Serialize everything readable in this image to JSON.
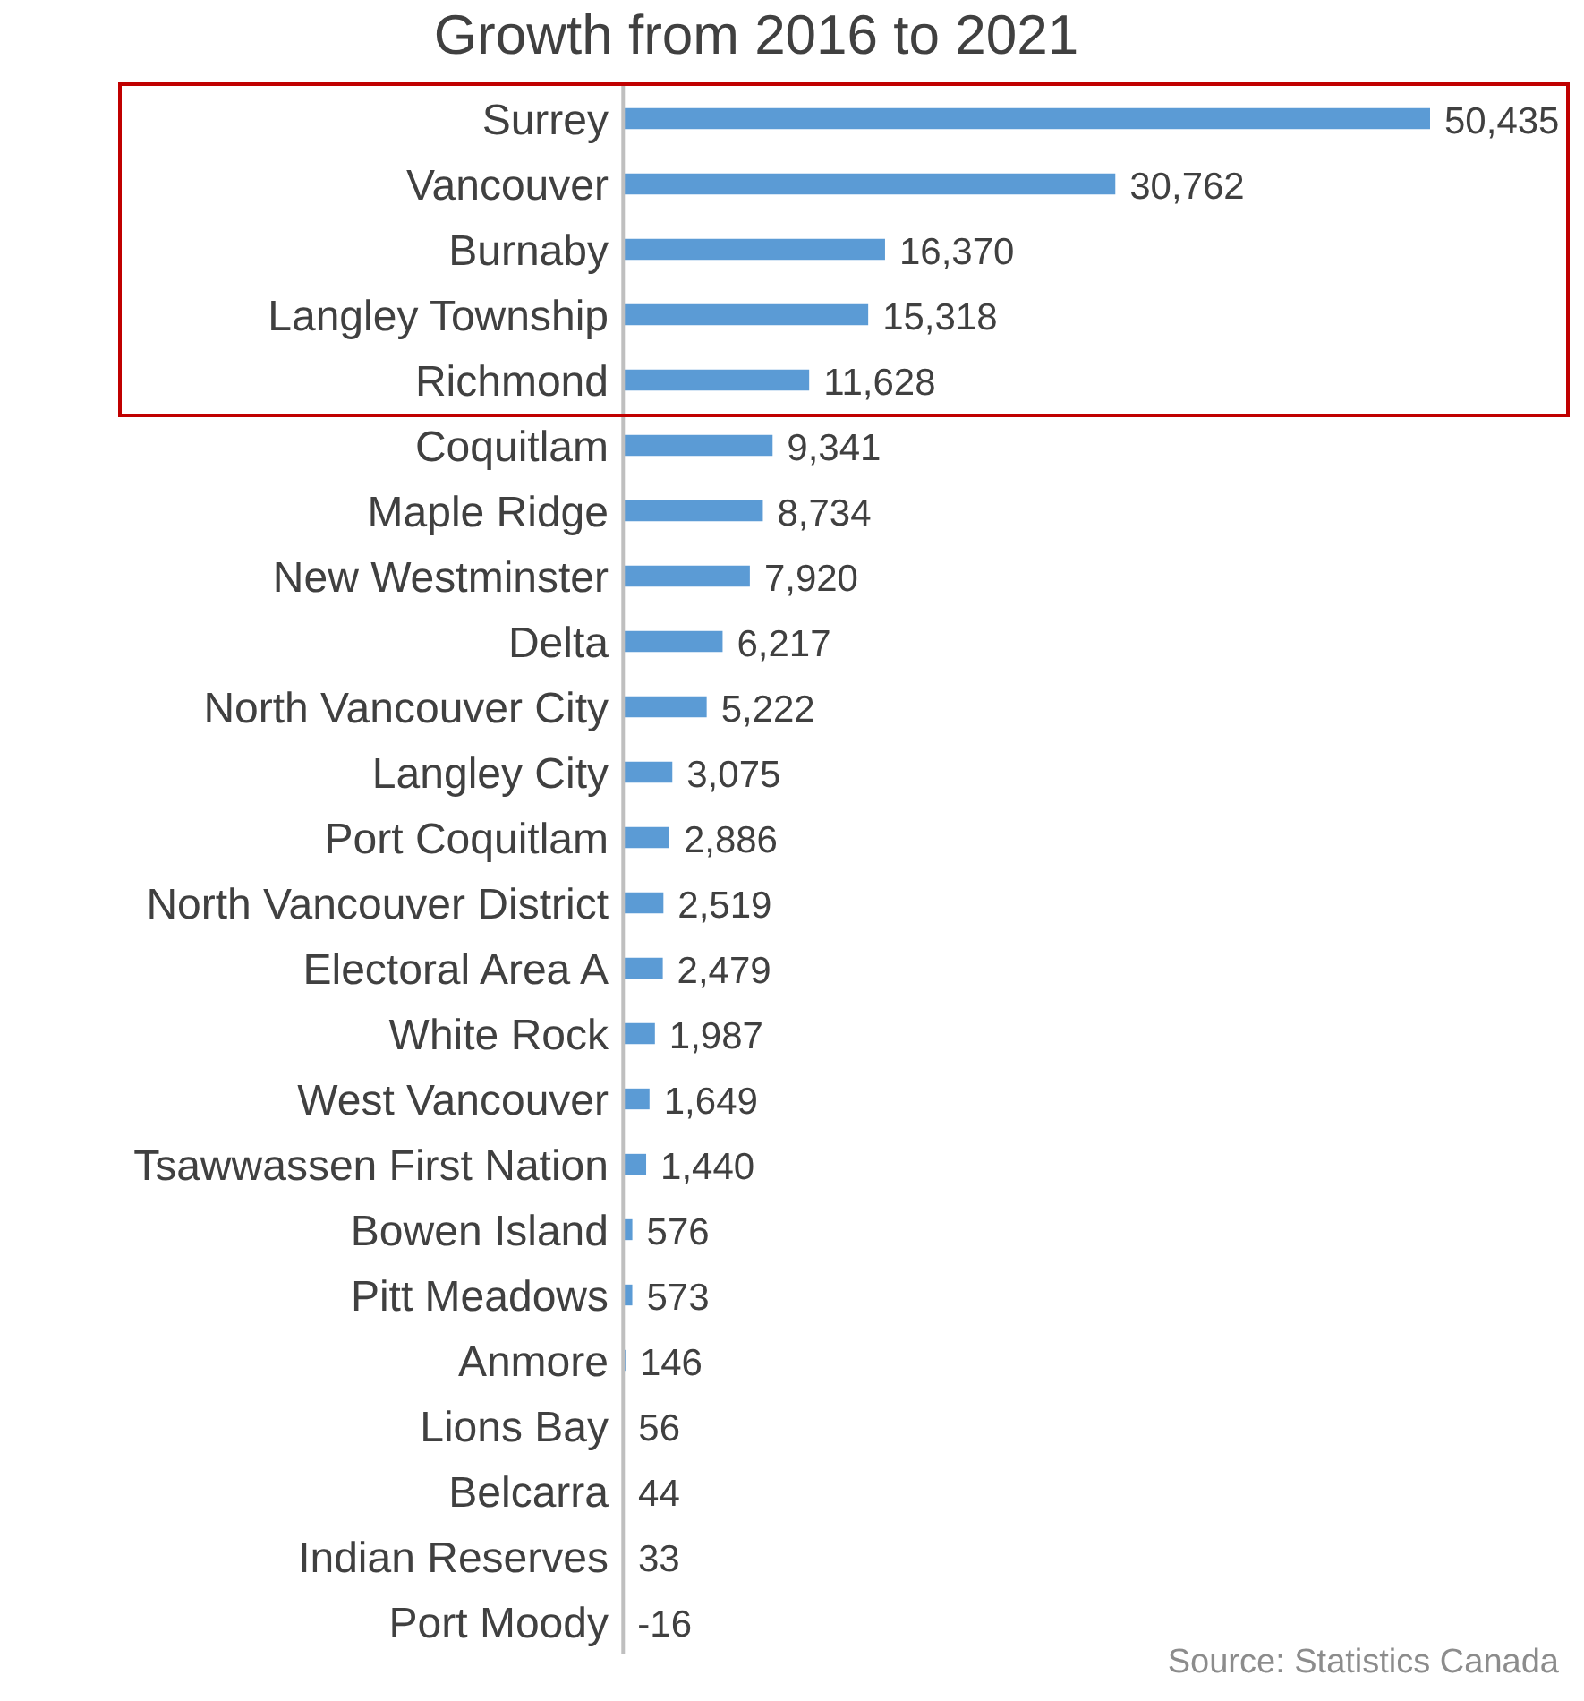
{
  "chart_data": {
    "type": "bar",
    "orientation": "horizontal",
    "title": "Growth from 2016 to 2021",
    "categories": [
      "Surrey",
      "Vancouver",
      "Burnaby",
      "Langley Township",
      "Richmond",
      "Coquitlam",
      "Maple Ridge",
      "New Westminster",
      "Delta",
      "North Vancouver City",
      "Langley City",
      "Port Coquitlam",
      "North Vancouver District",
      "Electoral Area A",
      "White Rock",
      "West Vancouver",
      "Tsawwassen First Nation",
      "Bowen Island",
      "Pitt Meadows",
      "Anmore",
      "Lions Bay",
      "Belcarra",
      "Indian Reserves",
      "Port Moody"
    ],
    "values": [
      50435,
      30762,
      16370,
      15318,
      11628,
      9341,
      8734,
      7920,
      6217,
      5222,
      3075,
      2886,
      2519,
      2479,
      1987,
      1649,
      1440,
      576,
      573,
      146,
      56,
      44,
      33,
      -16
    ],
    "value_labels": [
      "50,435",
      "30,762",
      "16,370",
      "15,318",
      "11,628",
      "9,341",
      "8,734",
      "7,920",
      "6,217",
      "5,222",
      "3,075",
      "2,886",
      "2,519",
      "2,479",
      "1,987",
      "1,649",
      "1,440",
      "576",
      "573",
      "146",
      "56",
      "44",
      "33",
      "-16"
    ],
    "color": "#5b9bd5",
    "tick_labels": "y",
    "annotations": [
      "Source: Statistics Canada"
    ]
  }
}
